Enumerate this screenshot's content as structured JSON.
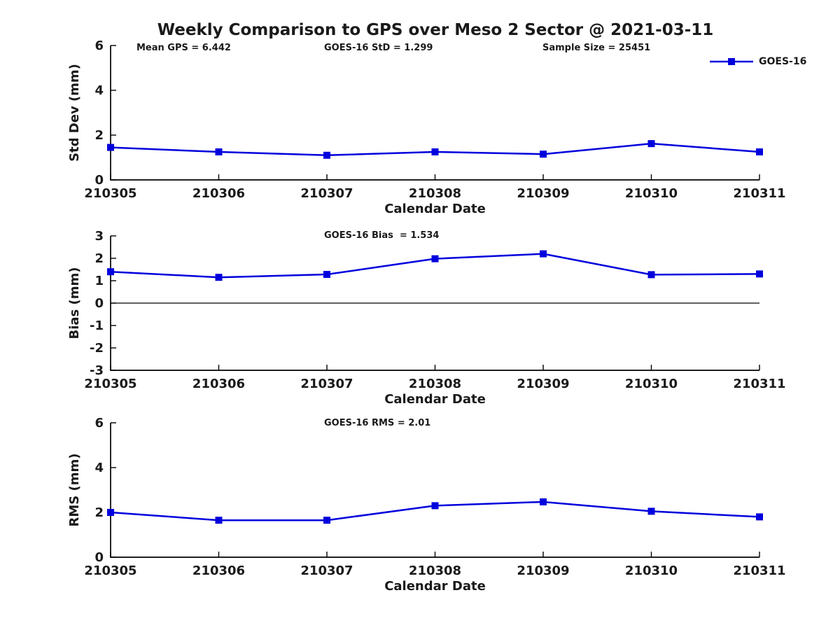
{
  "figure": {
    "title": "Weekly Comparison to GPS over Meso 2 Sector @ 2021-03-11",
    "background": "#ffffff",
    "text_color": "#1a1a1a",
    "axis_color": "#000000",
    "accent_blue": "#0000dd"
  },
  "legend": {
    "series_label": "GOES-16",
    "position": "top-right",
    "marker": "square-icon"
  },
  "chart_data": [
    {
      "id": "stddev",
      "type": "line",
      "ylabel": "Std Dev (mm)",
      "xlabel": "Calendar Date",
      "categories": [
        "210305",
        "210306",
        "210307",
        "210308",
        "210309",
        "210310",
        "210311"
      ],
      "series": [
        {
          "name": "GOES-16",
          "color": "#0000dd",
          "marker": "square",
          "values": [
            1.45,
            1.25,
            1.1,
            1.25,
            1.15,
            1.62,
            1.25
          ]
        }
      ],
      "ylim": [
        0,
        6
      ],
      "yticks": [
        0,
        2,
        4,
        6
      ],
      "grid": false,
      "zero_line": false,
      "annotations": [
        "Mean GPS = 6.442",
        "GOES-16 StD = 1.299",
        "Sample Size = 25451"
      ]
    },
    {
      "id": "bias",
      "type": "line",
      "ylabel": "Bias (mm)",
      "xlabel": "Calendar Date",
      "categories": [
        "210305",
        "210306",
        "210307",
        "210308",
        "210309",
        "210310",
        "210311"
      ],
      "series": [
        {
          "name": "GOES-16",
          "color": "#0000dd",
          "marker": "square",
          "values": [
            1.4,
            1.15,
            1.28,
            1.98,
            2.2,
            1.27,
            1.3
          ]
        }
      ],
      "ylim": [
        -3,
        3
      ],
      "yticks": [
        3,
        2,
        1,
        0,
        -1,
        -2,
        -3
      ],
      "grid": false,
      "zero_line": true,
      "annotation": "GOES-16 Bias  = 1.534"
    },
    {
      "id": "rms",
      "type": "line",
      "ylabel": "RMS (mm)",
      "xlabel": "Calendar Date",
      "categories": [
        "210305",
        "210306",
        "210307",
        "210308",
        "210309",
        "210310",
        "210311"
      ],
      "series": [
        {
          "name": "GOES-16",
          "color": "#0000dd",
          "marker": "square",
          "values": [
            2.0,
            1.65,
            1.65,
            2.3,
            2.47,
            2.05,
            1.8
          ]
        }
      ],
      "ylim": [
        0,
        6
      ],
      "yticks": [
        0,
        2,
        4,
        6
      ],
      "grid": false,
      "zero_line": false,
      "annotation": "GOES-16 RMS = 2.01"
    }
  ]
}
